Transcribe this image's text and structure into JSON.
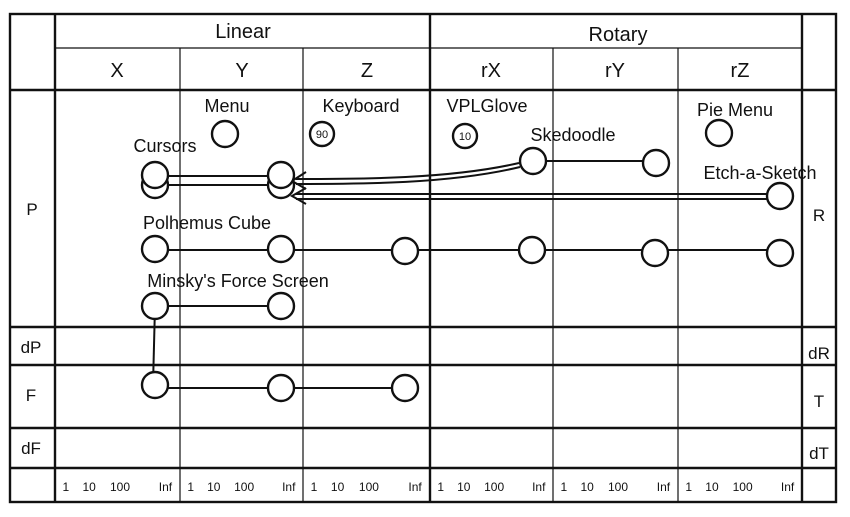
{
  "headers": {
    "linear": "Linear",
    "rotary": "Rotary",
    "x": "X",
    "y": "Y",
    "z": "Z",
    "rx": "rX",
    "ry": "rY",
    "rz": "rZ"
  },
  "rows_left": {
    "p": "P",
    "dp": "dP",
    "f": "F",
    "df": "dF"
  },
  "rows_right": {
    "r": "R",
    "dr": "dR",
    "t": "T",
    "dt": "dT"
  },
  "devices": {
    "menu": "Menu",
    "keyboard": "Keyboard",
    "keyboard_count": "90",
    "vplglove": "VPLGlove",
    "vplglove_count": "10",
    "skedoodle": "Skedoodle",
    "pie_menu": "Pie Menu",
    "cursors": "Cursors",
    "etch_a_sketch": "Etch-a-Sketch",
    "polhemus_cube": "Polhemus Cube",
    "minsky": "Minsky's Force Screen"
  },
  "scale_ticks": [
    "1",
    "10",
    "100",
    "Inf"
  ]
}
